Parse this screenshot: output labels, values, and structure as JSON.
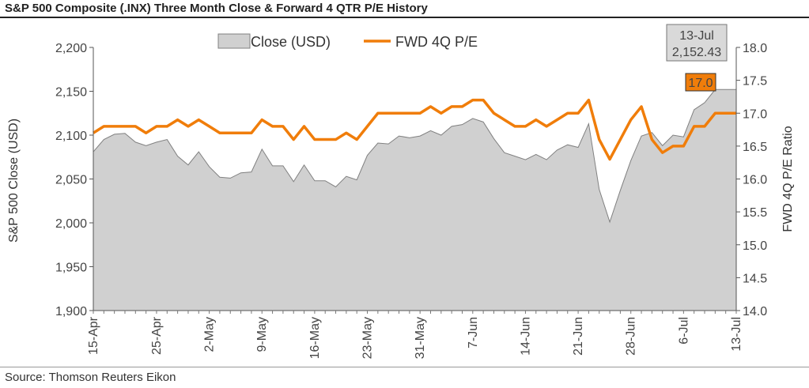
{
  "title": "S&P 500 Composite (.INX) Three Month Close & Forward 4 QTR P/E History",
  "source": "Source: Thomson Reuters Eikon",
  "colors": {
    "close_fill": "#d0d0d0",
    "close_line": "#808080",
    "pe_line": "#f07d0a",
    "pe_label_bg": "#f07d0a",
    "close_label_bg": "#d9d9d9"
  },
  "chart_data": {
    "type": "area+line",
    "title": "S&P 500 Composite (.INX) Three Month Close & Forward 4 QTR P/E History",
    "ylabel": "S&P 500 Close (USD)",
    "y2label": "FWD 4Q P/E Ratio",
    "ylim": [
      1900,
      2200
    ],
    "y2lim": [
      14.0,
      18.0
    ],
    "yticks": [
      "2,200",
      "2,150",
      "2,100",
      "2,050",
      "2,000",
      "1,950",
      "1,900"
    ],
    "y2ticks": [
      "18.0",
      "17.5",
      "17.0",
      "16.5",
      "16.0",
      "15.5",
      "15.0",
      "14.5",
      "14.0"
    ],
    "xtick_labels": [
      "15-Apr",
      "25-Apr",
      "2-May",
      "9-May",
      "16-May",
      "23-May",
      "31-May",
      "7-Jun",
      "14-Jun",
      "21-Jun",
      "28-Jun",
      "6-Jul",
      "13-Jul"
    ],
    "xtick_index": [
      0,
      6,
      11,
      16,
      21,
      26,
      31,
      36,
      41,
      46,
      51,
      56,
      61
    ],
    "legend": [
      "Close (USD)",
      "FWD 4Q P/E"
    ],
    "series": [
      {
        "name": "Close (USD)",
        "type": "area",
        "values": [
          2081,
          2095,
          2101,
          2102,
          2092,
          2088,
          2092,
          2095,
          2076,
          2066,
          2081,
          2064,
          2052,
          2051,
          2057,
          2058,
          2084,
          2065,
          2065,
          2047,
          2066,
          2048,
          2048,
          2041,
          2053,
          2049,
          2077,
          2091,
          2090,
          2099,
          2097,
          2099,
          2105,
          2100,
          2110,
          2112,
          2119,
          2115,
          2096,
          2080,
          2076,
          2072,
          2078,
          2072,
          2083,
          2089,
          2086,
          2113,
          2038,
          2001,
          2037,
          2071,
          2099,
          2103,
          2088,
          2100,
          2098,
          2129,
          2137,
          2152,
          2152,
          2152
        ]
      },
      {
        "name": "FWD 4Q P/E",
        "type": "line",
        "axis": "right",
        "values": [
          16.7,
          16.8,
          16.8,
          16.8,
          16.8,
          16.7,
          16.8,
          16.8,
          16.9,
          16.8,
          16.9,
          16.8,
          16.7,
          16.7,
          16.7,
          16.7,
          16.9,
          16.8,
          16.8,
          16.6,
          16.8,
          16.6,
          16.6,
          16.6,
          16.7,
          16.6,
          16.8,
          17.0,
          17.0,
          17.0,
          17.0,
          17.0,
          17.1,
          17.0,
          17.1,
          17.1,
          17.2,
          17.2,
          17.0,
          16.9,
          16.8,
          16.8,
          16.9,
          16.8,
          16.9,
          17.0,
          17.0,
          17.2,
          16.6,
          16.3,
          16.6,
          16.9,
          17.1,
          16.6,
          16.4,
          16.5,
          16.5,
          16.8,
          16.8,
          17.0,
          17.0,
          17.0
        ]
      }
    ],
    "annotations": [
      {
        "label_date": "13-Jul",
        "label_value": "2,152.43"
      },
      {
        "label_value": "17.0"
      }
    ]
  }
}
